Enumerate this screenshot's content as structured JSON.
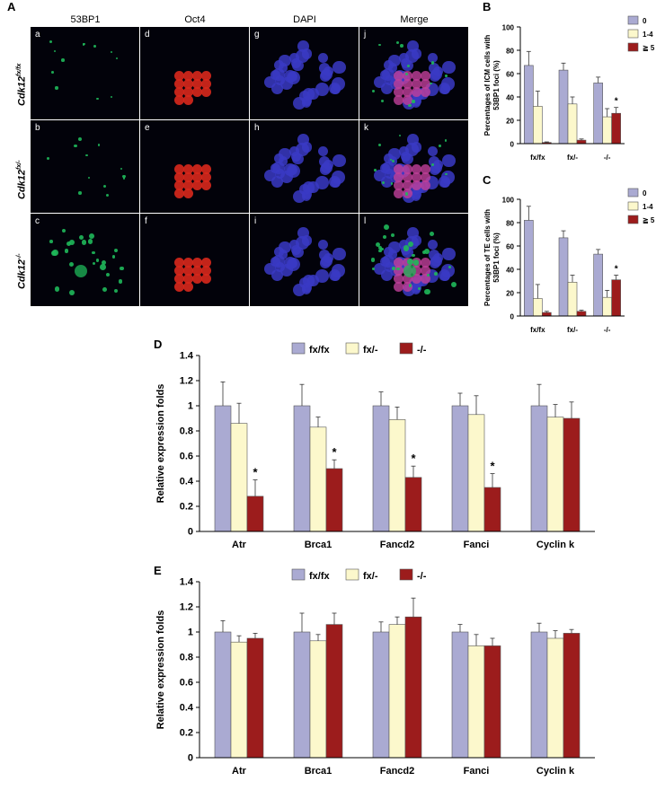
{
  "panel_letters": [
    "A",
    "B",
    "C",
    "D",
    "E"
  ],
  "micrograph": {
    "columns": [
      "53BP1",
      "Oct4",
      "DAPI",
      "Merge"
    ],
    "rows": [
      {
        "gene": "Cdk12",
        "sup": "fx/fx"
      },
      {
        "gene": "Cdk12",
        "sup": "fx/-"
      },
      {
        "gene": "Cdk12",
        "sup": "-/-"
      }
    ],
    "tile_labels": [
      [
        "a",
        "d",
        "g",
        "j"
      ],
      [
        "b",
        "e",
        "h",
        "k"
      ],
      [
        "c",
        "f",
        "i",
        "l"
      ]
    ],
    "colors": {
      "53BP1": "#1fb85a",
      "Oct4": "#d8281c",
      "DAPI": "#3c3ccd"
    }
  },
  "chart_data": [
    {
      "panel": "B",
      "type": "bar",
      "categories": [
        "fx/fx",
        "fx/-",
        "-/-"
      ],
      "series": [
        {
          "name": "0",
          "values": [
            67,
            63,
            52
          ],
          "errors": [
            12,
            6,
            5
          ]
        },
        {
          "name": "1-4",
          "values": [
            32,
            34,
            23
          ],
          "errors": [
            13,
            6,
            7
          ]
        },
        {
          "name": "≧ 5",
          "values": [
            1,
            3,
            26
          ],
          "errors": [
            0.5,
            1,
            5
          ]
        }
      ],
      "significance": [
        {
          "category": 2,
          "series": 2,
          "label": "*"
        }
      ],
      "ylabel": "Percentages of ICM cells with 53BP1 foci (%)",
      "ylim": [
        0,
        100
      ],
      "yticks": [
        0,
        20,
        40,
        60,
        80,
        100
      ],
      "legend": "top-right",
      "colors": [
        "#aaaad2",
        "#fcf8cc",
        "#9c1c1c"
      ]
    },
    {
      "panel": "C",
      "type": "bar",
      "categories": [
        "fx/fx",
        "fx/-",
        "-/-"
      ],
      "series": [
        {
          "name": "0",
          "values": [
            82,
            67,
            53
          ],
          "errors": [
            12,
            6,
            4
          ]
        },
        {
          "name": "1-4",
          "values": [
            15,
            29,
            16
          ],
          "errors": [
            12,
            6,
            6
          ]
        },
        {
          "name": "≧ 5",
          "values": [
            3,
            4,
            31
          ],
          "errors": [
            1,
            1,
            4
          ]
        }
      ],
      "significance": [
        {
          "category": 2,
          "series": 2,
          "label": "*"
        }
      ],
      "ylabel": "Percentages of TE cells with 53BP1 foci (%)",
      "ylim": [
        0,
        100
      ],
      "yticks": [
        0,
        20,
        40,
        60,
        80,
        100
      ],
      "legend": "top-right",
      "colors": [
        "#aaaad2",
        "#fcf8cc",
        "#9c1c1c"
      ]
    },
    {
      "panel": "D",
      "type": "bar",
      "categories": [
        "Atr",
        "Brca1",
        "Fancd2",
        "Fanci",
        "Cyclin k"
      ],
      "series": [
        {
          "name": "fx/fx",
          "values": [
            1.0,
            1.0,
            1.0,
            1.0,
            1.0
          ],
          "errors": [
            0.19,
            0.17,
            0.11,
            0.1,
            0.17
          ]
        },
        {
          "name": "fx/-",
          "values": [
            0.86,
            0.83,
            0.89,
            0.93,
            0.91
          ],
          "errors": [
            0.16,
            0.08,
            0.1,
            0.15,
            0.1
          ]
        },
        {
          "name": "-/-",
          "values": [
            0.28,
            0.5,
            0.43,
            0.35,
            0.9
          ],
          "errors": [
            0.13,
            0.07,
            0.09,
            0.11,
            0.13
          ]
        }
      ],
      "significance": [
        {
          "category": 0,
          "series": 2,
          "label": "*"
        },
        {
          "category": 1,
          "series": 2,
          "label": "*"
        },
        {
          "category": 2,
          "series": 2,
          "label": "*"
        },
        {
          "category": 3,
          "series": 2,
          "label": "*"
        }
      ],
      "ylabel": "Relative expression folds",
      "ylim": [
        0,
        1.4
      ],
      "yticks": [
        0,
        0.2,
        0.4,
        0.6,
        0.8,
        1,
        1.2,
        1.4
      ],
      "legend": "top",
      "colors": [
        "#aaaad2",
        "#fcf8cc",
        "#9c1c1c"
      ]
    },
    {
      "panel": "E",
      "type": "bar",
      "categories": [
        "Atr",
        "Brca1",
        "Fancd2",
        "Fanci",
        "Cyclin k"
      ],
      "series": [
        {
          "name": "fx/fx",
          "values": [
            1.0,
            1.0,
            1.0,
            1.0,
            1.0
          ],
          "errors": [
            0.09,
            0.15,
            0.08,
            0.06,
            0.07
          ]
        },
        {
          "name": "fx/-",
          "values": [
            0.92,
            0.93,
            1.06,
            0.89,
            0.95
          ],
          "errors": [
            0.05,
            0.05,
            0.06,
            0.09,
            0.06
          ]
        },
        {
          "name": "-/-",
          "values": [
            0.95,
            1.06,
            1.12,
            0.89,
            0.99
          ],
          "errors": [
            0.04,
            0.09,
            0.15,
            0.06,
            0.03
          ]
        }
      ],
      "significance": [],
      "ylabel": "Relative expression folds",
      "ylim": [
        0,
        1.4
      ],
      "yticks": [
        0,
        0.2,
        0.4,
        0.6,
        0.8,
        1,
        1.2,
        1.4
      ],
      "legend": "top",
      "colors": [
        "#aaaad2",
        "#fcf8cc",
        "#9c1c1c"
      ]
    }
  ]
}
